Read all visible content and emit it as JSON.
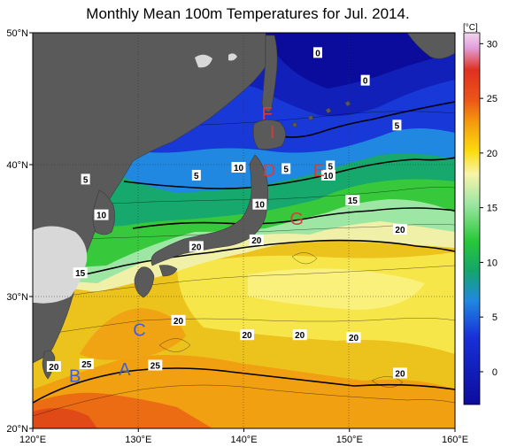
{
  "title": "Monthly Mean 100m Temperatures for Jul. 2014.",
  "map": {
    "lon_ticks": [
      "120°E",
      "130°E",
      "140°E",
      "150°E",
      "160°E"
    ],
    "lat_ticks": [
      "50°N",
      "40°N",
      "30°N",
      "20°N"
    ],
    "contour_labels": [
      {
        "text": "0",
        "lon": 147.0,
        "lat": 48.5
      },
      {
        "text": "0",
        "lon": 151.5,
        "lat": 46.4
      },
      {
        "text": "5",
        "lon": 154.5,
        "lat": 43.0
      },
      {
        "text": "5",
        "lon": 125.0,
        "lat": 38.9
      },
      {
        "text": "5",
        "lon": 135.5,
        "lat": 39.2
      },
      {
        "text": "10",
        "lon": 139.5,
        "lat": 39.8
      },
      {
        "text": "5",
        "lon": 144.0,
        "lat": 39.7
      },
      {
        "text": "5",
        "lon": 148.2,
        "lat": 39.9
      },
      {
        "text": "10",
        "lon": 148.0,
        "lat": 39.2
      },
      {
        "text": "10",
        "lon": 141.5,
        "lat": 37.0
      },
      {
        "text": "15",
        "lon": 150.3,
        "lat": 37.3
      },
      {
        "text": "10",
        "lon": 126.5,
        "lat": 36.2
      },
      {
        "text": "20",
        "lon": 154.8,
        "lat": 35.1
      },
      {
        "text": "20",
        "lon": 141.2,
        "lat": 34.3
      },
      {
        "text": "20",
        "lon": 135.5,
        "lat": 33.8
      },
      {
        "text": "15",
        "lon": 124.5,
        "lat": 31.8
      },
      {
        "text": "20",
        "lon": 133.8,
        "lat": 28.2
      },
      {
        "text": "20",
        "lon": 140.3,
        "lat": 27.1
      },
      {
        "text": "20",
        "lon": 145.3,
        "lat": 27.1
      },
      {
        "text": "20",
        "lon": 150.4,
        "lat": 26.9
      },
      {
        "text": "25",
        "lon": 125.1,
        "lat": 24.9
      },
      {
        "text": "25",
        "lon": 131.6,
        "lat": 24.8
      },
      {
        "text": "20",
        "lon": 122.0,
        "lat": 24.7
      },
      {
        "text": "20",
        "lon": 154.8,
        "lat": 24.2
      }
    ],
    "region_markers": [
      {
        "text": "F",
        "lon": 142.2,
        "lat": 43.9,
        "color": "#d93a3a"
      },
      {
        "text": "I",
        "lon": 142.7,
        "lat": 42.5,
        "color": "#d93a3a"
      },
      {
        "text": "D",
        "lon": 142.4,
        "lat": 39.6,
        "color": "#d93a3a"
      },
      {
        "text": "E",
        "lon": 147.1,
        "lat": 39.6,
        "color": "#d93a3a"
      },
      {
        "text": "G",
        "lon": 145.0,
        "lat": 35.9,
        "color": "#d93a3a"
      },
      {
        "text": "C",
        "lon": 130.1,
        "lat": 27.5,
        "color": "#3d5fd9"
      },
      {
        "text": "A",
        "lon": 128.7,
        "lat": 24.5,
        "color": "#3d5fd9"
      },
      {
        "text": "B",
        "lon": 124.0,
        "lat": 24.0,
        "color": "#3d5fd9"
      }
    ]
  },
  "colorbar": {
    "unit": "[°C]",
    "tick_labels": [
      "30",
      "25",
      "20",
      "15",
      "10",
      "5",
      "0"
    ],
    "range": [
      -3,
      31
    ]
  }
}
